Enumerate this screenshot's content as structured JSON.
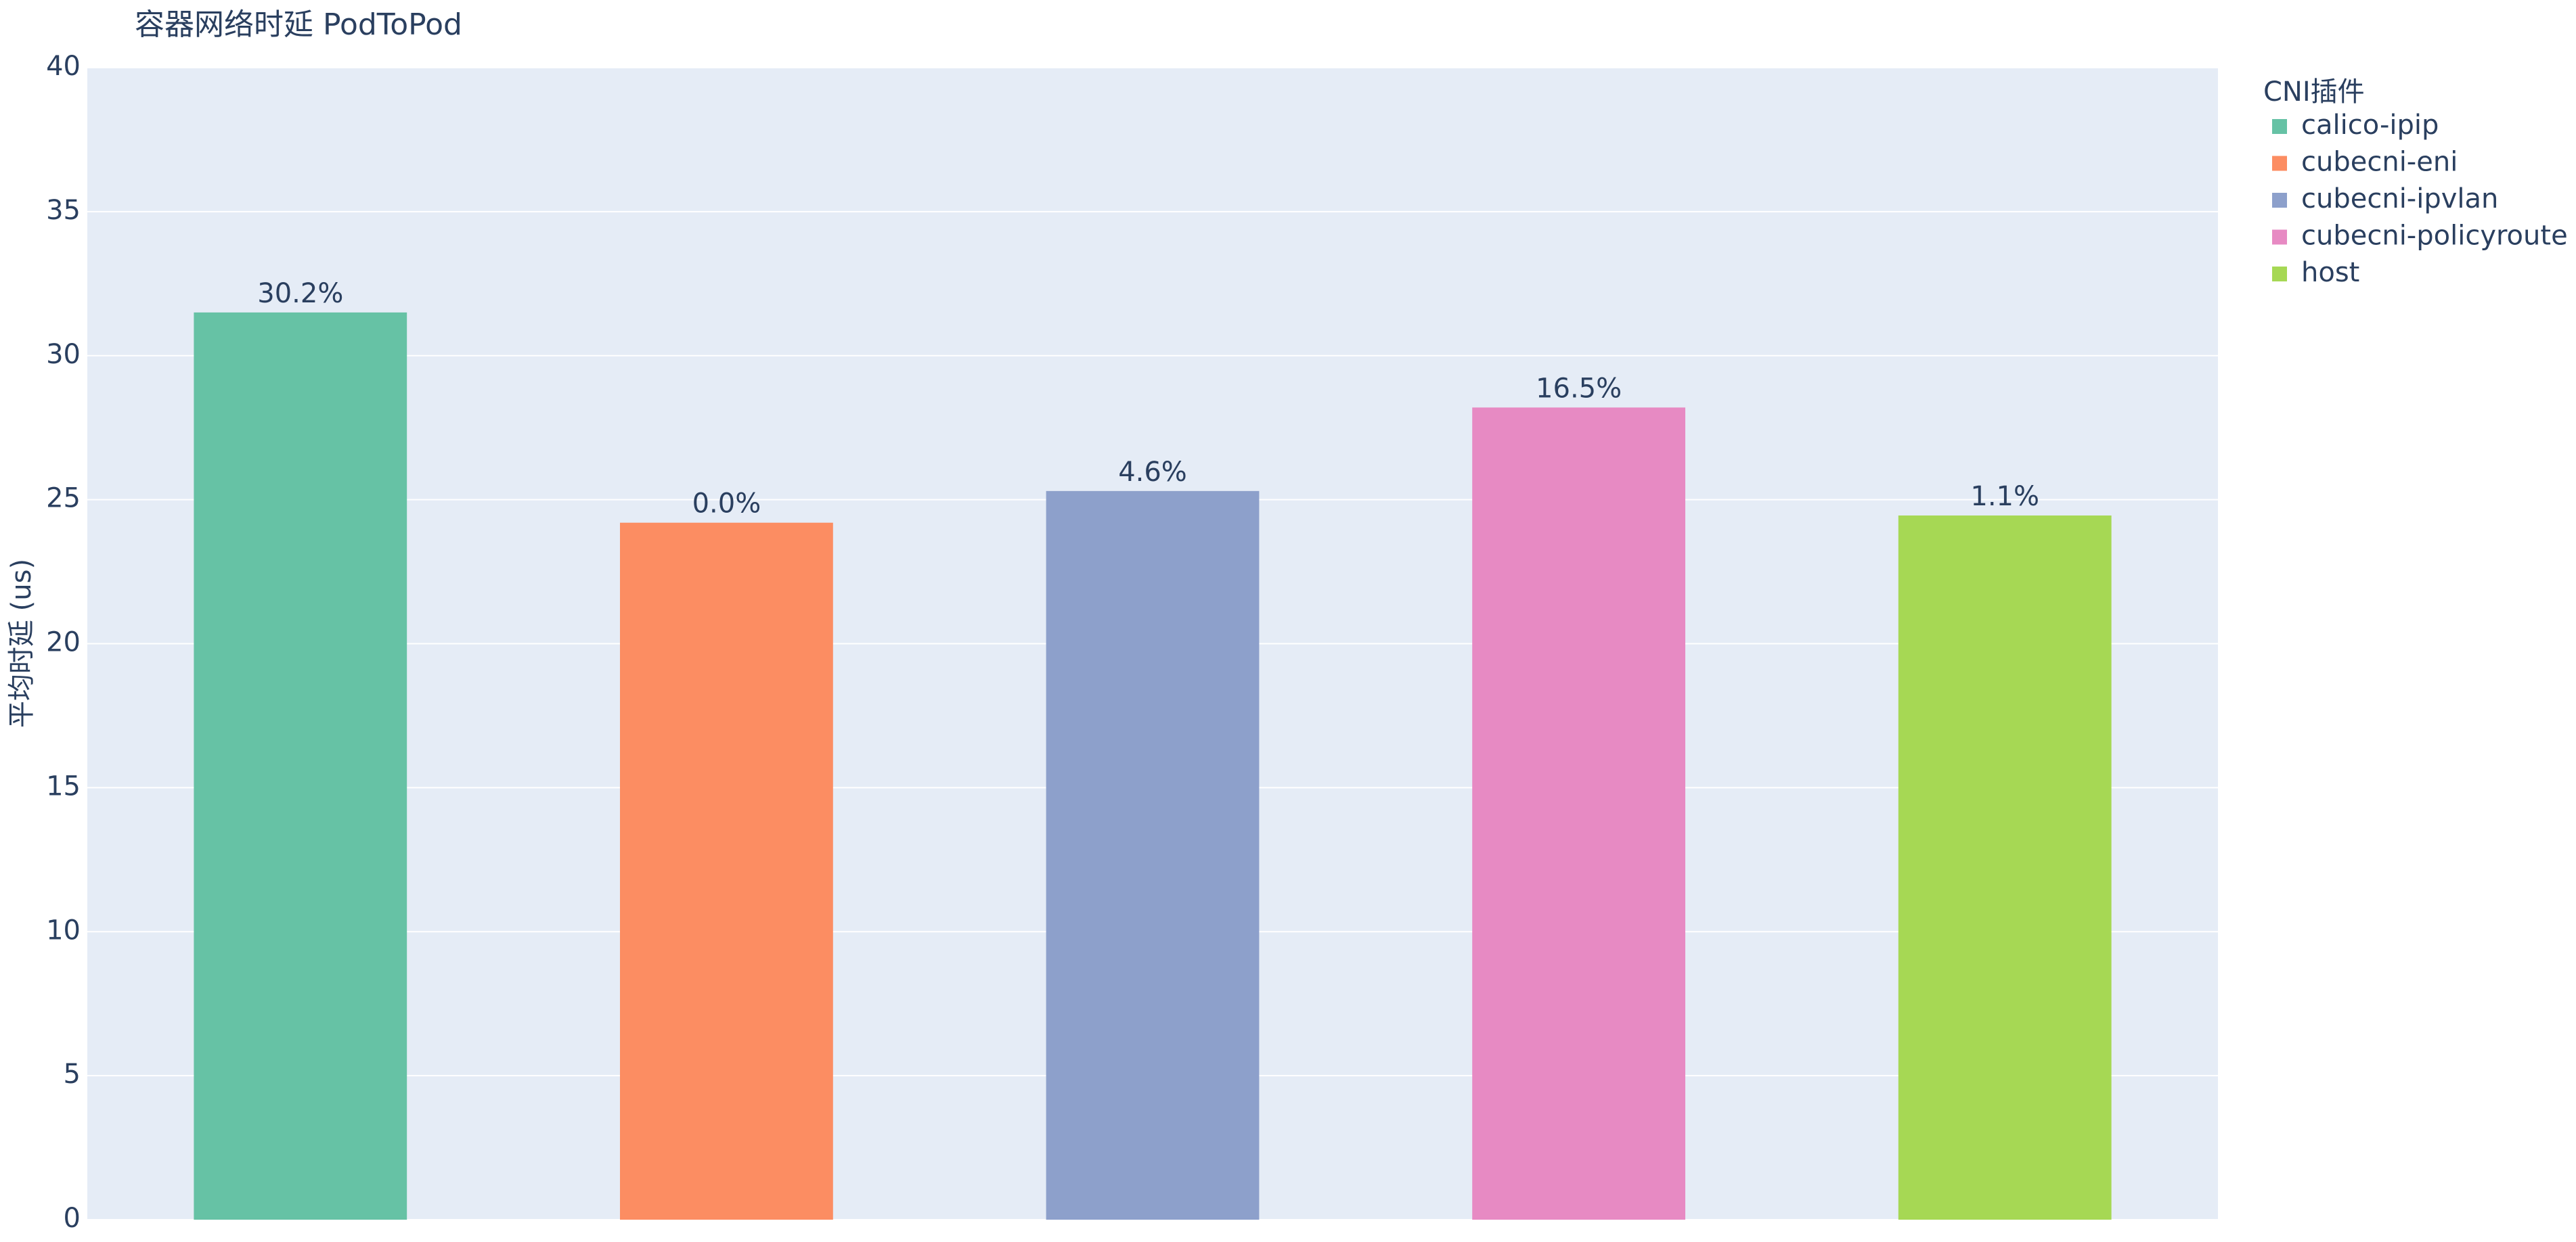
{
  "chart_data": {
    "type": "bar",
    "title": "容器网络时延 PodToPod",
    "y_label": "平均时延 (us)",
    "legend_title": "CNI插件",
    "legend_position": "right",
    "categories": [
      null,
      null,
      null,
      null,
      null
    ],
    "series": [
      {
        "name": "calico-ipip",
        "color": "#66c2a5",
        "values": [
          31.5,
          null,
          null,
          null,
          null
        ],
        "annotations": [
          {
            "value": 30.2,
            "label": "30.2%"
          },
          null,
          null,
          null,
          null
        ]
      },
      {
        "name": "cubecni-eni",
        "color": "#fc8d62",
        "values": [
          null,
          24.2,
          null,
          null,
          null
        ],
        "annotations": [
          null,
          {
            "value": 0.0,
            "label": "0.0%"
          },
          null,
          null,
          null
        ]
      },
      {
        "name": "cubecni-ipvlan",
        "color": "#8da0cb",
        "values": [
          null,
          null,
          25.3,
          null,
          null
        ],
        "annotations": [
          null,
          null,
          {
            "value": 4.6,
            "label": "4.6%"
          },
          null,
          null
        ]
      },
      {
        "name": "cubecni-policyroute",
        "color": "#e78ac3",
        "values": [
          null,
          null,
          null,
          28.2,
          null
        ],
        "annotations": [
          null,
          null,
          null,
          {
            "value": 16.5,
            "label": "16.5%"
          },
          null
        ]
      },
      {
        "name": "host",
        "color": "#a6d854",
        "values": [
          null,
          null,
          null,
          null,
          24.45
        ],
        "annotations": [
          null,
          null,
          null,
          null,
          {
            "value": 1.1,
            "label": "1.1%"
          }
        ]
      }
    ],
    "ylim": [
      0,
      40
    ],
    "yticks": [
      0,
      5,
      10,
      15,
      20,
      25,
      30,
      35,
      40
    ],
    "grid": true
  }
}
